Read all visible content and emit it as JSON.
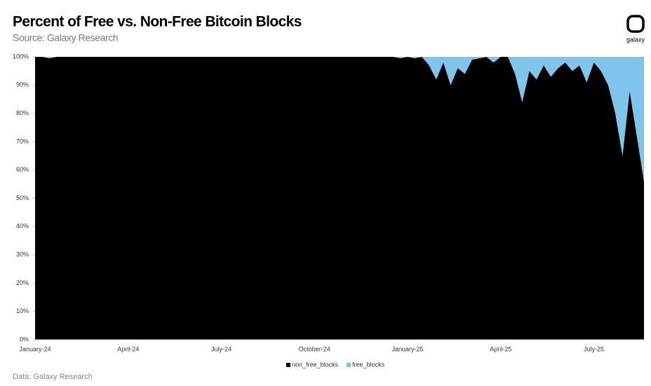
{
  "chart_data": {
    "type": "stacked_area",
    "title": "Percent of Free vs. Non-Free Bitcoin Blocks",
    "subtitle": "Source: Galaxy Research",
    "footer": "Data: Galaxy Research",
    "logo": "galaxy",
    "categories": [
      "January-24",
      null,
      null,
      null,
      null,
      null,
      null,
      null,
      null,
      null,
      null,
      null,
      null,
      "April-24",
      null,
      null,
      null,
      null,
      null,
      null,
      null,
      null,
      null,
      null,
      null,
      null,
      "July-24",
      null,
      null,
      null,
      null,
      null,
      null,
      null,
      null,
      null,
      null,
      null,
      null,
      "October-24",
      null,
      null,
      null,
      null,
      null,
      null,
      null,
      null,
      null,
      null,
      null,
      null,
      "January-25",
      null,
      null,
      null,
      null,
      null,
      null,
      null,
      null,
      null,
      null,
      null,
      null,
      "April-25",
      null,
      null,
      null,
      null,
      null,
      null,
      null,
      null,
      null,
      null,
      null,
      null,
      "July-25",
      null,
      null,
      null,
      null,
      null,
      null,
      null
    ],
    "series": [
      {
        "name": "non_free_blocks",
        "color": "#000000",
        "values": [
          100,
          100,
          99.5,
          100,
          100,
          100,
          100,
          100,
          100,
          100,
          100,
          100,
          100,
          100,
          100,
          100,
          100,
          100,
          100,
          100,
          100,
          100,
          100,
          100,
          100,
          100,
          100,
          100,
          100,
          100,
          100,
          100,
          100,
          100,
          100,
          100,
          100,
          100,
          100,
          100,
          100,
          100,
          100,
          100,
          100,
          100,
          100,
          100,
          100,
          100,
          100,
          99.5,
          100,
          99.5,
          100,
          97,
          92,
          98,
          90,
          96,
          94,
          99,
          99.5,
          100,
          98,
          100,
          100,
          94,
          84,
          95,
          92,
          97,
          93,
          96,
          98,
          95,
          97,
          91,
          98,
          95,
          90,
          80,
          65,
          88,
          72,
          56
        ]
      },
      {
        "name": "free_blocks",
        "color": "#7fc4ea",
        "values": [
          0,
          0,
          0.5,
          0,
          0,
          0,
          0,
          0,
          0,
          0,
          0,
          0,
          0,
          0,
          0,
          0,
          0,
          0,
          0,
          0,
          0,
          0,
          0,
          0,
          0,
          0,
          0,
          0,
          0,
          0,
          0,
          0,
          0,
          0,
          0,
          0,
          0,
          0,
          0,
          0,
          0,
          0,
          0,
          0,
          0,
          0,
          0,
          0,
          0,
          0,
          0,
          0.5,
          0,
          0.5,
          0,
          3,
          8,
          2,
          10,
          4,
          6,
          1,
          0.5,
          0,
          2,
          0,
          0,
          6,
          16,
          5,
          8,
          3,
          7,
          4,
          2,
          5,
          3,
          9,
          2,
          5,
          10,
          20,
          35,
          12,
          28,
          44
        ]
      }
    ],
    "ylim": [
      0,
      100
    ],
    "yticks": [
      {
        "value": 0,
        "label": "0%"
      },
      {
        "value": 10,
        "label": "10%"
      },
      {
        "value": 20,
        "label": "20%"
      },
      {
        "value": 30,
        "label": "30%"
      },
      {
        "value": 40,
        "label": "40%"
      },
      {
        "value": 50,
        "label": "50%"
      },
      {
        "value": 60,
        "label": "60%"
      },
      {
        "value": 70,
        "label": "70%"
      },
      {
        "value": 80,
        "label": "80%"
      },
      {
        "value": 90,
        "label": "90%"
      },
      {
        "value": 100,
        "label": "100%"
      }
    ],
    "legend": "bottom"
  }
}
